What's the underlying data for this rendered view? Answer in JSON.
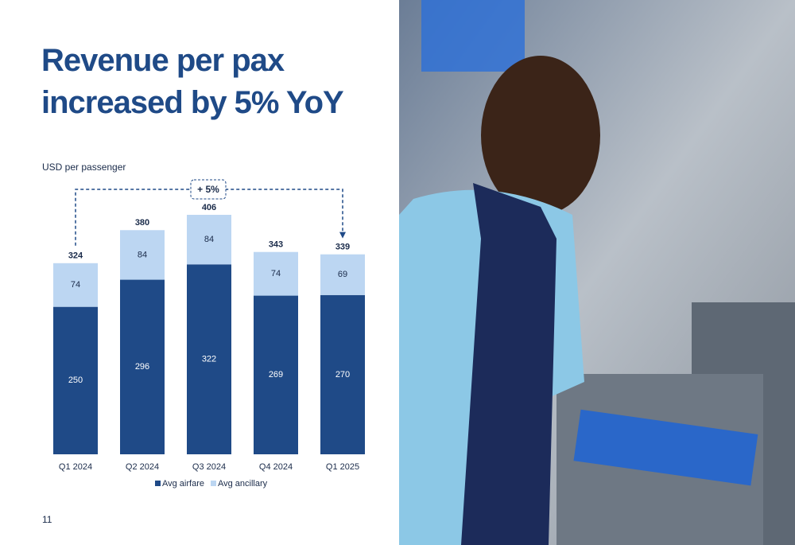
{
  "chart_data": {
    "type": "stacked_bar",
    "title": "Revenue per pax increased by 5% YoY",
    "y_label": "USD per passenger",
    "categories": [
      "Q1 2024",
      "Q2 2024",
      "Q3 2024",
      "Q4 2024",
      "Q1 2025"
    ],
    "series": [
      {
        "name": "Avg airfare",
        "color": "#1f4a87",
        "values": [
          250,
          296,
          322,
          269,
          270
        ]
      },
      {
        "name": "Avg ancillary",
        "color": "#bcd6f2",
        "values": [
          74,
          84,
          84,
          74,
          69
        ]
      }
    ],
    "totals": [
      324,
      380,
      406,
      343,
      339
    ],
    "annotation": "+ 5%",
    "page_number": "11"
  }
}
